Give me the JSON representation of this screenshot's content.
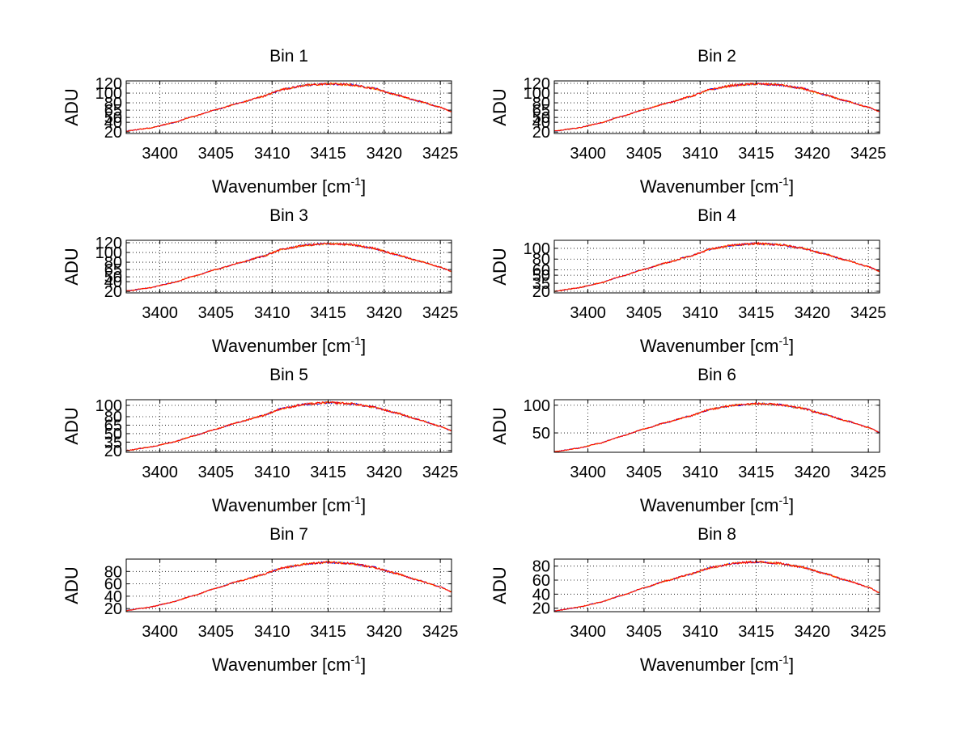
{
  "figure": {
    "background": "#ffffff",
    "series_colors": [
      "#0000ff",
      "#ffa500",
      "#ff0000"
    ]
  },
  "chart_data": [
    {
      "type": "line",
      "title": "Bin 1",
      "xlabel": "Wavenumber [cm-1]",
      "ylabel": "ADU",
      "xlim": [
        3397,
        3426
      ],
      "ylim": [
        17,
        125
      ],
      "grid": true,
      "x_ticks": [
        3400,
        3405,
        3410,
        3415,
        3420,
        3425
      ],
      "y_ticks": [
        20,
        40,
        50,
        65,
        80,
        100,
        120
      ],
      "y_tick_labels": [
        "20",
        "40",
        "50",
        "65",
        "80",
        "100",
        "120"
      ],
      "x": [
        3397,
        3399,
        3401,
        3403,
        3405,
        3407,
        3409,
        3411,
        3413,
        3415,
        3417,
        3419,
        3421,
        3423,
        3425,
        3426
      ],
      "y": [
        22,
        28,
        38,
        52,
        66,
        79,
        92,
        108,
        116,
        119,
        117,
        110,
        97,
        84,
        71,
        62
      ]
    },
    {
      "type": "line",
      "title": "Bin 2",
      "xlabel": "Wavenumber [cm-1]",
      "ylabel": "ADU",
      "xlim": [
        3397,
        3426
      ],
      "ylim": [
        17,
        125
      ],
      "grid": true,
      "x_ticks": [
        3400,
        3405,
        3410,
        3415,
        3420,
        3425
      ],
      "y_ticks": [
        20,
        40,
        50,
        65,
        80,
        100,
        120
      ],
      "y_tick_labels": [
        "20",
        "40",
        "50",
        "65",
        "80",
        "100",
        "120"
      ],
      "x": [
        3397,
        3399,
        3401,
        3403,
        3405,
        3407,
        3409,
        3411,
        3413,
        3415,
        3417,
        3419,
        3421,
        3423,
        3425,
        3426
      ],
      "y": [
        22,
        28,
        38,
        52,
        66,
        79,
        92,
        108,
        116,
        119,
        117,
        110,
        97,
        84,
        71,
        62
      ]
    },
    {
      "type": "line",
      "title": "Bin 3",
      "xlabel": "Wavenumber [cm-1]",
      "ylabel": "ADU",
      "xlim": [
        3397,
        3426
      ],
      "ylim": [
        17,
        125
      ],
      "grid": true,
      "x_ticks": [
        3400,
        3405,
        3410,
        3415,
        3420,
        3425
      ],
      "y_ticks": [
        20,
        40,
        50,
        65,
        80,
        100,
        120
      ],
      "y_tick_labels": [
        "20",
        "40",
        "50",
        "65",
        "80",
        "100",
        "120"
      ],
      "x": [
        3397,
        3399,
        3401,
        3403,
        3405,
        3407,
        3409,
        3411,
        3413,
        3415,
        3417,
        3419,
        3421,
        3423,
        3425,
        3426
      ],
      "y": [
        21,
        27,
        37,
        51,
        65,
        78,
        91,
        107,
        115,
        118,
        116,
        109,
        96,
        83,
        70,
        61
      ]
    },
    {
      "type": "line",
      "title": "Bin 4",
      "xlabel": "Wavenumber [cm-1]",
      "ylabel": "ADU",
      "xlim": [
        3397,
        3426
      ],
      "ylim": [
        17,
        115
      ],
      "grid": true,
      "x_ticks": [
        3400,
        3405,
        3410,
        3415,
        3420,
        3425
      ],
      "y_ticks": [
        20,
        35,
        50,
        60,
        80,
        100
      ],
      "y_tick_labels": [
        "20",
        "35",
        "50",
        "60",
        "80",
        "100"
      ],
      "x": [
        3397,
        3399,
        3401,
        3403,
        3405,
        3407,
        3409,
        3411,
        3413,
        3415,
        3417,
        3419,
        3421,
        3423,
        3425,
        3426
      ],
      "y": [
        20,
        26,
        35,
        48,
        61,
        73,
        85,
        99,
        106,
        109,
        107,
        101,
        90,
        78,
        66,
        57
      ]
    },
    {
      "type": "line",
      "title": "Bin 5",
      "xlabel": "Wavenumber [cm-1]",
      "ylabel": "ADU",
      "xlim": [
        3397,
        3426
      ],
      "ylim": [
        17,
        110
      ],
      "grid": true,
      "x_ticks": [
        3400,
        3405,
        3410,
        3415,
        3420,
        3425
      ],
      "y_ticks": [
        20,
        35,
        50,
        65,
        80,
        100
      ],
      "y_tick_labels": [
        "20",
        "35",
        "50",
        "65",
        "80",
        "100"
      ],
      "x": [
        3397,
        3399,
        3401,
        3403,
        3405,
        3407,
        3409,
        3411,
        3413,
        3415,
        3417,
        3419,
        3421,
        3423,
        3425,
        3426
      ],
      "y": [
        20,
        26,
        34,
        46,
        58,
        70,
        81,
        95,
        102,
        105,
        103,
        97,
        87,
        75,
        63,
        55
      ]
    },
    {
      "type": "line",
      "title": "Bin 6",
      "xlabel": "Wavenumber [cm-1]",
      "ylabel": "ADU",
      "xlim": [
        3397,
        3426
      ],
      "ylim": [
        15,
        110
      ],
      "grid": true,
      "x_ticks": [
        3400,
        3405,
        3410,
        3415,
        3420,
        3425
      ],
      "y_ticks": [
        50,
        100
      ],
      "y_tick_labels": [
        "50",
        "100"
      ],
      "x": [
        3397,
        3399,
        3401,
        3403,
        3405,
        3407,
        3409,
        3411,
        3413,
        3415,
        3417,
        3419,
        3421,
        3423,
        3425,
        3426
      ],
      "y": [
        16,
        22,
        31,
        44,
        57,
        69,
        80,
        93,
        100,
        103,
        101,
        95,
        84,
        72,
        60,
        51
      ]
    },
    {
      "type": "line",
      "title": "Bin 7",
      "xlabel": "Wavenumber [cm-1]",
      "ylabel": "ADU",
      "xlim": [
        3397,
        3426
      ],
      "ylim": [
        15,
        100
      ],
      "grid": true,
      "x_ticks": [
        3400,
        3405,
        3410,
        3415,
        3420,
        3425
      ],
      "y_ticks": [
        20,
        40,
        60,
        80
      ],
      "y_tick_labels": [
        "20",
        "40",
        "60",
        "80"
      ],
      "x": [
        3397,
        3399,
        3401,
        3403,
        3405,
        3407,
        3409,
        3411,
        3413,
        3415,
        3417,
        3419,
        3421,
        3423,
        3425,
        3426
      ],
      "y": [
        17,
        22,
        30,
        41,
        53,
        64,
        74,
        86,
        92,
        95,
        93,
        87,
        77,
        66,
        55,
        47
      ]
    },
    {
      "type": "line",
      "title": "Bin 8",
      "xlabel": "Wavenumber [cm-1]",
      "ylabel": "ADU",
      "xlim": [
        3397,
        3426
      ],
      "ylim": [
        15,
        90
      ],
      "grid": true,
      "x_ticks": [
        3400,
        3405,
        3410,
        3415,
        3420,
        3425
      ],
      "y_ticks": [
        20,
        40,
        60,
        80
      ],
      "y_tick_labels": [
        "20",
        "40",
        "60",
        "80"
      ],
      "x": [
        3397,
        3399,
        3401,
        3403,
        3405,
        3407,
        3409,
        3411,
        3413,
        3415,
        3417,
        3419,
        3421,
        3423,
        3425,
        3426
      ],
      "y": [
        16,
        21,
        28,
        38,
        49,
        59,
        68,
        78,
        84,
        86,
        84,
        79,
        70,
        60,
        50,
        42
      ]
    }
  ]
}
